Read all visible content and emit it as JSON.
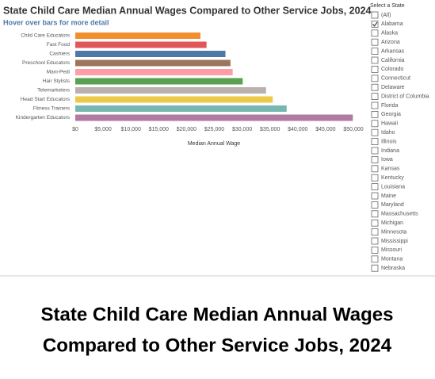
{
  "chart_data": {
    "type": "barh",
    "title": "State Child Care Median Annual Wages Compared to Other Service Jobs, 2024",
    "subtitle": "Hover over bars for more detail",
    "xlabel": "Median Annual Wage",
    "categories": [
      "Child Care Educators",
      "Fast Food",
      "Cashiers",
      "Preschool Educators",
      "Mani-Pedi",
      "Hair Stylists",
      "Telemarketers",
      "Head Start Educators",
      "Fitness Trainers",
      "Kindergarten Educators"
    ],
    "values": [
      22500,
      23600,
      27000,
      27900,
      28300,
      30100,
      34300,
      35500,
      38000,
      49900
    ],
    "colors": [
      "#f28e2b",
      "#e15759",
      "#4e79a7",
      "#9c755f",
      "#ff9da7",
      "#59a14f",
      "#bab0ac",
      "#edc948",
      "#76b7b2",
      "#b07aa1"
    ],
    "xlim": [
      0,
      50000
    ],
    "xticks": [
      {
        "value": 0,
        "label": "$0"
      },
      {
        "value": 5000,
        "label": "$5,000"
      },
      {
        "value": 10000,
        "label": "$10,000"
      },
      {
        "value": 15000,
        "label": "$15,000"
      },
      {
        "value": 20000,
        "label": "$20,000"
      },
      {
        "value": 25000,
        "label": "$25,000"
      },
      {
        "value": 30000,
        "label": "$30,000"
      },
      {
        "value": 35000,
        "label": "$35,000"
      },
      {
        "value": 40000,
        "label": "$40,000"
      },
      {
        "value": 45000,
        "label": "$45,000"
      },
      {
        "value": 50000,
        "label": "$50,000"
      }
    ],
    "grid": false
  },
  "filter": {
    "title": "Select a State",
    "selected": "Alabama",
    "options": [
      "(All)",
      "Alabama",
      "Alaska",
      "Arizona",
      "Arkansas",
      "California",
      "Colorado",
      "Connecticut",
      "Delaware",
      "District of Columbia",
      "Florida",
      "Georgia",
      "Hawaii",
      "Idaho",
      "Illinois",
      "Indiana",
      "Iowa",
      "Kansas",
      "Kentucky",
      "Louisiana",
      "Maine",
      "Maryland",
      "Massachusetts",
      "Michigan",
      "Minnesota",
      "Mississippi",
      "Missouri",
      "Montana",
      "Nebraska"
    ]
  },
  "caption": [
    "State Child Care Median Annual Wages",
    "Compared to Other Service Jobs, 2024"
  ]
}
